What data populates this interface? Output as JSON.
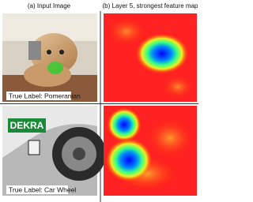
{
  "figure": {
    "columns": [
      "(a) Input Image",
      "(b) Layer 5, strongest feature map"
    ],
    "rows": [
      {
        "label": "True Label: Pomeranian"
      },
      {
        "label": "True Label: Car Wheel"
      }
    ]
  }
}
